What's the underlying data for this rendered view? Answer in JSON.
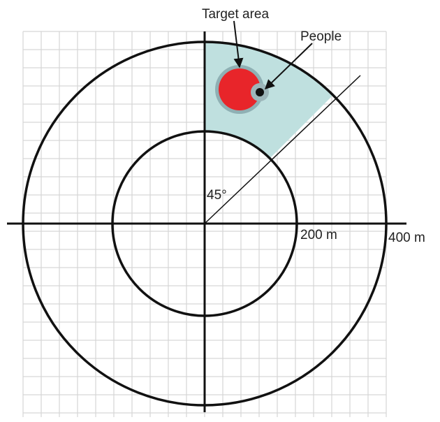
{
  "labels": {
    "target_area": "Target area",
    "people": "People",
    "angle": "45°",
    "inner_radius": "200 m",
    "outer_radius": "400 m"
  }
}
